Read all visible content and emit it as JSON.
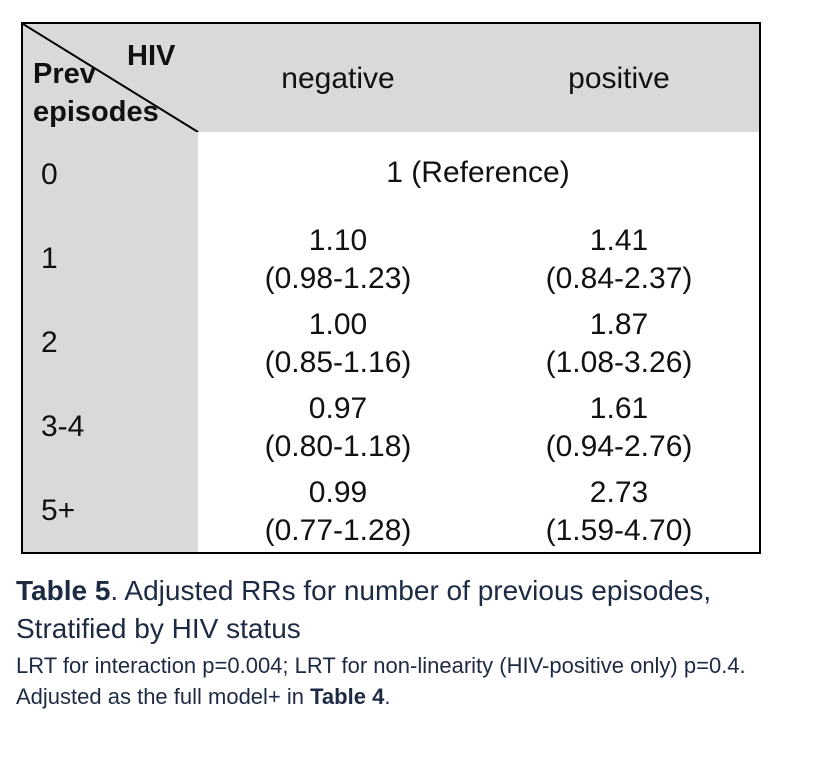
{
  "table": {
    "corner_hiv": "HIV",
    "corner_prev": "Prev",
    "corner_episodes": "episodes",
    "col_negative": "negative",
    "col_positive": "positive",
    "reference": "1 (Reference)",
    "rows": [
      {
        "label": "0"
      },
      {
        "label": "1",
        "neg_value": "1.10",
        "neg_ci": "(0.98-1.23)",
        "pos_value": "1.41",
        "pos_ci": "(0.84-2.37)"
      },
      {
        "label": "2",
        "neg_value": "1.00",
        "neg_ci": "(0.85-1.16)",
        "pos_value": "1.87",
        "pos_ci": "(1.08-3.26)"
      },
      {
        "label": "3-4",
        "neg_value": "0.97",
        "neg_ci": "(0.80-1.18)",
        "pos_value": "1.61",
        "pos_ci": "(0.94-2.76)"
      },
      {
        "label": "5+",
        "neg_value": "0.99",
        "neg_ci": "(0.77-1.28)",
        "pos_value": "2.73",
        "pos_ci": "(1.59-4.70)"
      }
    ]
  },
  "caption": {
    "title_bold": "Table 5",
    "title_rest": ". Adjusted RRs for number of previous episodes, Stratified by HIV status",
    "note_text": "LRT for interaction p=0.004; LRT for non-linearity (HIV-positive only) p=0.4. Adjusted as the full model+ in ",
    "note_bold": "Table 4",
    "note_end": "."
  }
}
